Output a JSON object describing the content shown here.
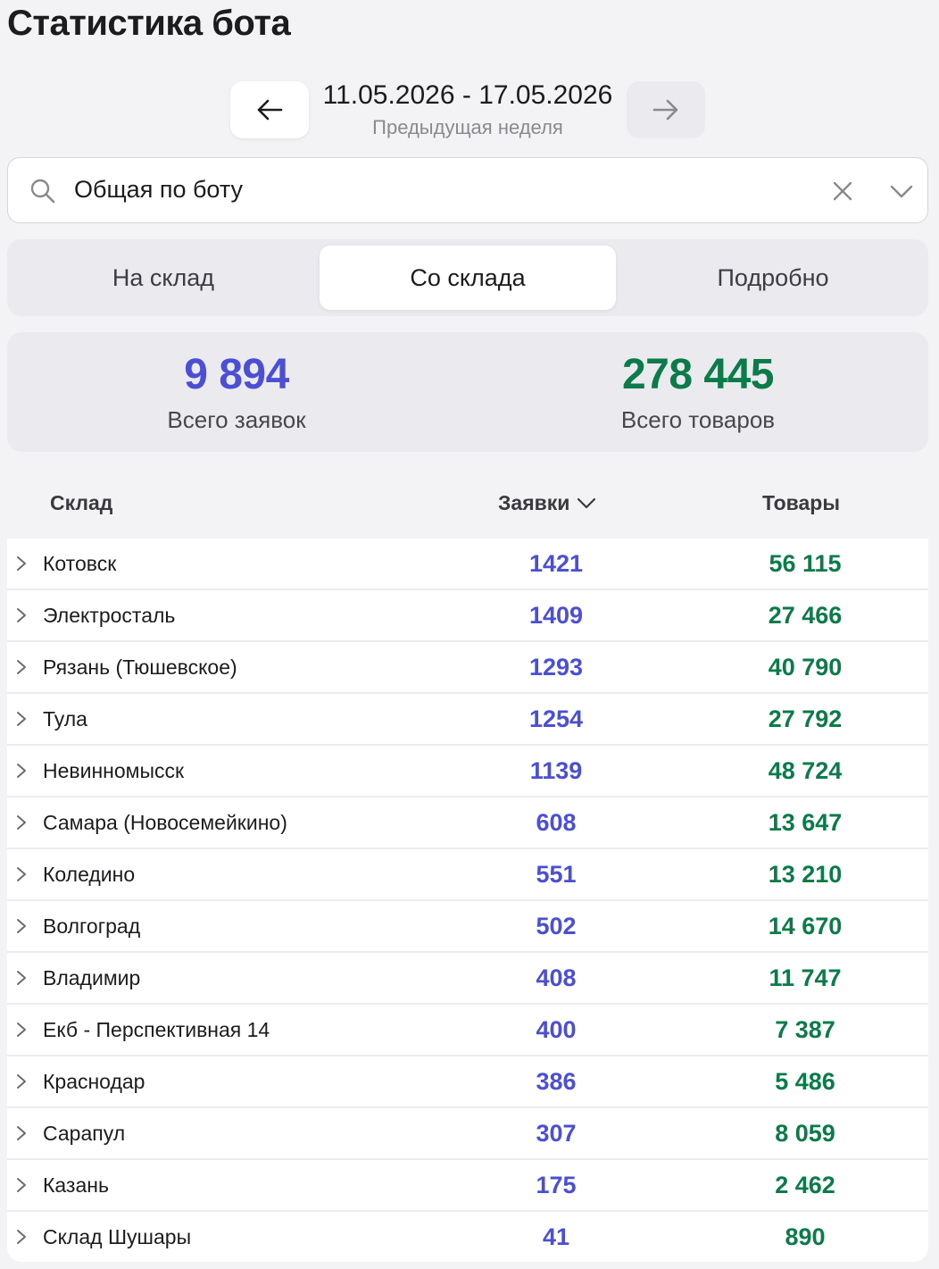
{
  "header": {
    "title": "Статистика бота"
  },
  "week_nav": {
    "date_range": "11.05.2026 - 17.05.2026",
    "label": "Предыдущая неделя",
    "prev_icon": "arrow-left-icon",
    "next_icon": "arrow-right-icon"
  },
  "search": {
    "value": "Общая по боту",
    "icon": "search-icon",
    "clear_icon": "close-icon",
    "dropdown_icon": "chevron-down-icon"
  },
  "tabs": [
    {
      "label": "На склад",
      "active": false
    },
    {
      "label": "Со склада",
      "active": true
    },
    {
      "label": "Подробно",
      "active": false
    }
  ],
  "totals": {
    "requests": {
      "value": "9 894",
      "label": "Всего заявок"
    },
    "goods": {
      "value": "278 445",
      "label": "Всего товаров"
    }
  },
  "colors": {
    "requests": "#4a4fd6",
    "goods": "#0b7b4a",
    "background": "#f3f3f6"
  },
  "table": {
    "columns": [
      "Склад",
      "Заявки",
      "Товары"
    ],
    "sort_column": "Заявки",
    "sort_icon": "chevron-down-icon",
    "rows": [
      {
        "name": "Котовск",
        "requests": "1421",
        "goods": "56 115"
      },
      {
        "name": "Электросталь",
        "requests": "1409",
        "goods": "27 466"
      },
      {
        "name": "Рязань (Тюшевское)",
        "requests": "1293",
        "goods": "40 790"
      },
      {
        "name": "Тула",
        "requests": "1254",
        "goods": "27 792"
      },
      {
        "name": "Невинномысск",
        "requests": "1139",
        "goods": "48 724"
      },
      {
        "name": "Самара (Новосемейкино)",
        "requests": "608",
        "goods": "13 647"
      },
      {
        "name": "Коледино",
        "requests": "551",
        "goods": "13 210"
      },
      {
        "name": "Волгоград",
        "requests": "502",
        "goods": "14 670"
      },
      {
        "name": "Владимир",
        "requests": "408",
        "goods": "11 747"
      },
      {
        "name": "Екб - Перспективная 14",
        "requests": "400",
        "goods": "7 387"
      },
      {
        "name": "Краснодар",
        "requests": "386",
        "goods": "5 486"
      },
      {
        "name": "Сарапул",
        "requests": "307",
        "goods": "8 059"
      },
      {
        "name": "Казань",
        "requests": "175",
        "goods": "2 462"
      },
      {
        "name": "Склад Шушары",
        "requests": "41",
        "goods": "890"
      }
    ]
  }
}
